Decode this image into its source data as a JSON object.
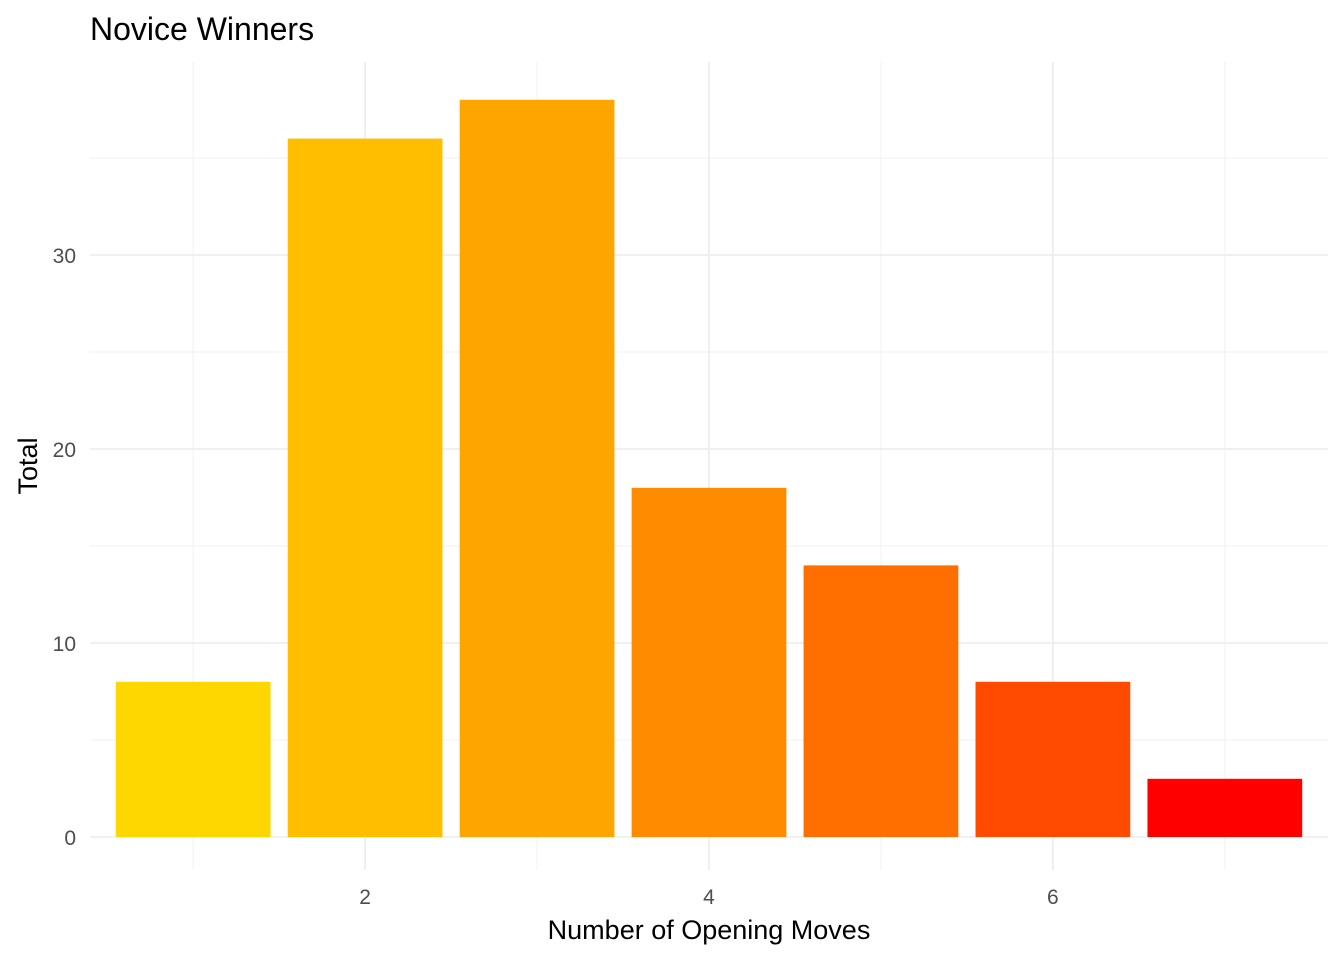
{
  "chart_data": {
    "type": "bar",
    "title": "Novice Winners",
    "xlabel": "Number of Opening Moves",
    "ylabel": "Total",
    "x": [
      1,
      2,
      3,
      4,
      5,
      6,
      7
    ],
    "values": [
      8,
      36,
      38,
      18,
      14,
      8,
      3
    ],
    "colors": [
      "#FFD700",
      "#FFBF00",
      "#FFA500",
      "#FF8C00",
      "#FF6F00",
      "#FF4A00",
      "#FF0000"
    ],
    "xticks": [
      2,
      4,
      6
    ],
    "yticks": [
      0,
      10,
      20,
      30
    ],
    "xlim": [
      0.4,
      7.6
    ],
    "ylim": [
      0,
      38
    ],
    "grid": true,
    "legend": "none"
  }
}
